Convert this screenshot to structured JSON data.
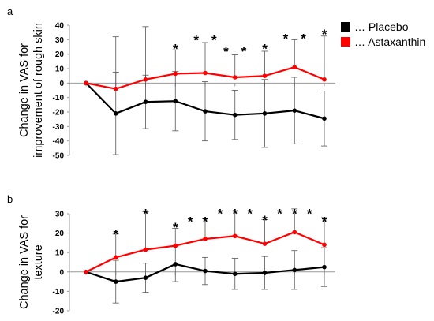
{
  "legend": {
    "entries": [
      {
        "label": "… Placebo",
        "color": "#000000"
      },
      {
        "label": "… Astaxanthin",
        "color": "#ff0000"
      }
    ]
  },
  "chart_data": [
    {
      "panel_label": "a",
      "type": "line",
      "ylabel_lines": [
        "Change in VAS for",
        "improvement of rough skin"
      ],
      "ylim": [
        -50,
        40
      ],
      "yticks": [
        40,
        30,
        20,
        10,
        0,
        -10,
        -20,
        -30,
        -40,
        -50
      ],
      "x": [
        0,
        1,
        2,
        3,
        4,
        5,
        6,
        7,
        8
      ],
      "series": [
        {
          "name": "… Placebo",
          "color": "#000000",
          "values": [
            0,
            -21,
            -13,
            -12.5,
            -19.5,
            -22,
            -21,
            -19,
            -24.5
          ],
          "error_dir": "both",
          "errors": [
            0,
            28.5,
            18.5,
            20.5,
            20.5,
            17,
            23.5,
            23,
            19
          ]
        },
        {
          "name": "… Astaxanthin",
          "color": "#ff0000",
          "values": [
            0,
            -4,
            2.5,
            6.5,
            7,
            4,
            5,
            11,
            2.5
          ],
          "error_dir": "up",
          "errors": [
            0,
            36,
            36.5,
            16.5,
            21,
            15.5,
            17,
            19,
            30
          ]
        }
      ],
      "significance": [
        {
          "x": 3,
          "y": 25,
          "label": "*"
        },
        {
          "x": 3.7,
          "y": 31,
          "label": "*"
        },
        {
          "x": 4.3,
          "y": 31,
          "label": "*"
        },
        {
          "x": 4.7,
          "y": 23,
          "label": "*"
        },
        {
          "x": 5.3,
          "y": 23,
          "label": "*"
        },
        {
          "x": 6,
          "y": 25,
          "label": "*"
        },
        {
          "x": 6.7,
          "y": 32,
          "label": "*"
        },
        {
          "x": 7.3,
          "y": 32,
          "label": "*"
        },
        {
          "x": 8,
          "y": 35,
          "label": "*"
        }
      ]
    },
    {
      "panel_label": "b",
      "type": "line",
      "ylabel_lines": [
        "Change in VAS for",
        "texture"
      ],
      "ylim": [
        -20,
        30
      ],
      "yticks": [
        30,
        20,
        10,
        0,
        -10,
        -20
      ],
      "x": [
        0,
        1,
        2,
        3,
        4,
        5,
        6,
        7,
        8
      ],
      "series": [
        {
          "name": "… Placebo",
          "color": "#000000",
          "values": [
            0,
            -5,
            -3,
            4,
            0.5,
            -1,
            -0.5,
            1,
            2.5
          ],
          "error_dir": "both",
          "errors": [
            0,
            11,
            7.5,
            9,
            7,
            8,
            8.5,
            10,
            10
          ]
        },
        {
          "name": "… Astaxanthin",
          "color": "#ff0000",
          "values": [
            0,
            7.5,
            11.5,
            13.5,
            17,
            18.5,
            14.5,
            20.5,
            14
          ],
          "error_dir": "up",
          "errors": [
            0,
            12,
            19.5,
            9,
            10.5,
            13,
            12.5,
            12,
            14
          ]
        }
      ],
      "significance": [
        {
          "x": 1,
          "y": 20.5,
          "label": "*"
        },
        {
          "x": 2,
          "y": 31,
          "label": "*"
        },
        {
          "x": 3,
          "y": 24,
          "label": "*"
        },
        {
          "x": 3.5,
          "y": 27,
          "label": "*"
        },
        {
          "x": 4,
          "y": 27,
          "label": "*"
        },
        {
          "x": 4.5,
          "y": 31,
          "label": "*"
        },
        {
          "x": 5,
          "y": 31,
          "label": "*"
        },
        {
          "x": 5.5,
          "y": 31,
          "label": "*"
        },
        {
          "x": 6,
          "y": 27.5,
          "label": "*"
        },
        {
          "x": 6.5,
          "y": 31,
          "label": "*"
        },
        {
          "x": 7,
          "y": 31,
          "label": "*"
        },
        {
          "x": 7.5,
          "y": 31,
          "label": "*"
        },
        {
          "x": 8,
          "y": 27,
          "label": "*"
        }
      ]
    }
  ]
}
